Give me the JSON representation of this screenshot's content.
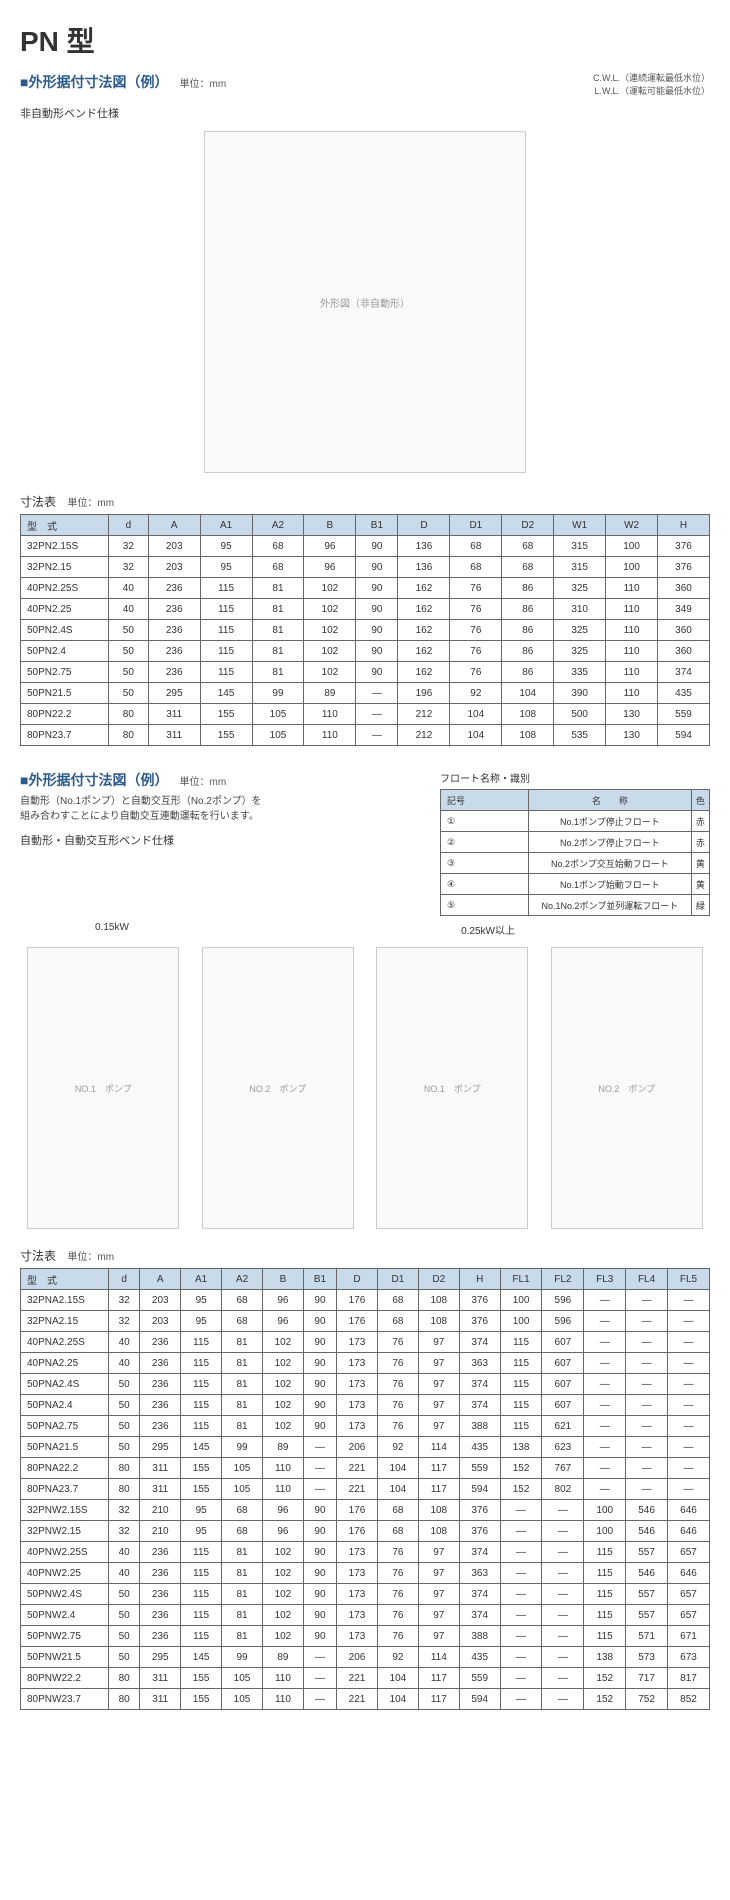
{
  "title": "PN 型",
  "section1": {
    "heading": "■外形据付寸法図（例）",
    "unit": "単位：mm",
    "notes": [
      "C.W.L.（連続運転最低水位）",
      "L.W.L.（運転可能最低水位）"
    ],
    "subtype": "非自動形ベンド仕様",
    "diagram_label": "外形図（非自動形）"
  },
  "table1": {
    "title": "寸法表",
    "unit": "単位：mm",
    "columns": [
      "型　式",
      "d",
      "A",
      "A1",
      "A2",
      "B",
      "B1",
      "D",
      "D1",
      "D2",
      "W1",
      "W2",
      "H"
    ],
    "rows": [
      [
        "32PN2.15S",
        "32",
        "203",
        "95",
        "68",
        "96",
        "90",
        "136",
        "68",
        "68",
        "315",
        "100",
        "376"
      ],
      [
        "32PN2.15",
        "32",
        "203",
        "95",
        "68",
        "96",
        "90",
        "136",
        "68",
        "68",
        "315",
        "100",
        "376"
      ],
      [
        "40PN2.25S",
        "40",
        "236",
        "115",
        "81",
        "102",
        "90",
        "162",
        "76",
        "86",
        "325",
        "110",
        "360"
      ],
      [
        "40PN2.25",
        "40",
        "236",
        "115",
        "81",
        "102",
        "90",
        "162",
        "76",
        "86",
        "310",
        "110",
        "349"
      ],
      [
        "50PN2.4S",
        "50",
        "236",
        "115",
        "81",
        "102",
        "90",
        "162",
        "76",
        "86",
        "325",
        "110",
        "360"
      ],
      [
        "50PN2.4",
        "50",
        "236",
        "115",
        "81",
        "102",
        "90",
        "162",
        "76",
        "86",
        "325",
        "110",
        "360"
      ],
      [
        "50PN2.75",
        "50",
        "236",
        "115",
        "81",
        "102",
        "90",
        "162",
        "76",
        "86",
        "335",
        "110",
        "374"
      ],
      [
        "50PN21.5",
        "50",
        "295",
        "145",
        "99",
        "89",
        "—",
        "196",
        "92",
        "104",
        "390",
        "110",
        "435"
      ],
      [
        "80PN22.2",
        "80",
        "311",
        "155",
        "105",
        "110",
        "—",
        "212",
        "104",
        "108",
        "500",
        "130",
        "559"
      ],
      [
        "80PN23.7",
        "80",
        "311",
        "155",
        "105",
        "110",
        "—",
        "212",
        "104",
        "108",
        "535",
        "130",
        "594"
      ]
    ]
  },
  "section2": {
    "heading": "■外形据付寸法図（例）",
    "unit": "単位：mm",
    "note_lines": [
      "自動形（No.1ポンプ）と自動交互形（No.2ポンプ）を",
      "組み合わすことにより自動交互連動運転を行います。"
    ],
    "subtype": "自動形・自動交互形ベンド仕様",
    "float_title": "フロート名称・識別",
    "float_table": {
      "columns": [
        "記号",
        "名　　称",
        "色"
      ],
      "rows": [
        [
          "①",
          "No.1ポンプ停止フロート",
          "赤"
        ],
        [
          "②",
          "No.2ポンプ停止フロート",
          "赤"
        ],
        [
          "③",
          "No.2ポンプ交互始動フロート",
          "黄"
        ],
        [
          "④",
          "No.1ポンプ始動フロート",
          "黄"
        ],
        [
          "⑤",
          "No.1No.2ポンプ並列運転フロート",
          "緑"
        ]
      ]
    },
    "kw_left": "0.15kW",
    "kw_right": "0.25kW以上",
    "pump_labels": [
      "NO.1　ポンプ",
      "NO.2　ポンプ",
      "NO.1　ポンプ",
      "NO.2　ポンプ"
    ]
  },
  "table2": {
    "title": "寸法表",
    "unit": "単位：mm",
    "columns": [
      "型　式",
      "d",
      "A",
      "A1",
      "A2",
      "B",
      "B1",
      "D",
      "D1",
      "D2",
      "H",
      "FL1",
      "FL2",
      "FL3",
      "FL4",
      "FL5"
    ],
    "rows": [
      [
        "32PNA2.15S",
        "32",
        "203",
        "95",
        "68",
        "96",
        "90",
        "176",
        "68",
        "108",
        "376",
        "100",
        "596",
        "—",
        "—",
        "—"
      ],
      [
        "32PNA2.15",
        "32",
        "203",
        "95",
        "68",
        "96",
        "90",
        "176",
        "68",
        "108",
        "376",
        "100",
        "596",
        "—",
        "—",
        "—"
      ],
      [
        "40PNA2.25S",
        "40",
        "236",
        "115",
        "81",
        "102",
        "90",
        "173",
        "76",
        "97",
        "374",
        "115",
        "607",
        "—",
        "—",
        "—"
      ],
      [
        "40PNA2.25",
        "40",
        "236",
        "115",
        "81",
        "102",
        "90",
        "173",
        "76",
        "97",
        "363",
        "115",
        "607",
        "—",
        "—",
        "—"
      ],
      [
        "50PNA2.4S",
        "50",
        "236",
        "115",
        "81",
        "102",
        "90",
        "173",
        "76",
        "97",
        "374",
        "115",
        "607",
        "—",
        "—",
        "—"
      ],
      [
        "50PNA2.4",
        "50",
        "236",
        "115",
        "81",
        "102",
        "90",
        "173",
        "76",
        "97",
        "374",
        "115",
        "607",
        "—",
        "—",
        "—"
      ],
      [
        "50PNA2.75",
        "50",
        "236",
        "115",
        "81",
        "102",
        "90",
        "173",
        "76",
        "97",
        "388",
        "115",
        "621",
        "—",
        "—",
        "—"
      ],
      [
        "50PNA21.5",
        "50",
        "295",
        "145",
        "99",
        "89",
        "—",
        "206",
        "92",
        "114",
        "435",
        "138",
        "623",
        "—",
        "—",
        "—"
      ],
      [
        "80PNA22.2",
        "80",
        "311",
        "155",
        "105",
        "110",
        "—",
        "221",
        "104",
        "117",
        "559",
        "152",
        "767",
        "—",
        "—",
        "—"
      ],
      [
        "80PNA23.7",
        "80",
        "311",
        "155",
        "105",
        "110",
        "—",
        "221",
        "104",
        "117",
        "594",
        "152",
        "802",
        "—",
        "—",
        "—"
      ],
      [
        "32PNW2.15S",
        "32",
        "210",
        "95",
        "68",
        "96",
        "90",
        "176",
        "68",
        "108",
        "376",
        "—",
        "—",
        "100",
        "546",
        "646"
      ],
      [
        "32PNW2.15",
        "32",
        "210",
        "95",
        "68",
        "96",
        "90",
        "176",
        "68",
        "108",
        "376",
        "—",
        "—",
        "100",
        "546",
        "646"
      ],
      [
        "40PNW2.25S",
        "40",
        "236",
        "115",
        "81",
        "102",
        "90",
        "173",
        "76",
        "97",
        "374",
        "—",
        "—",
        "115",
        "557",
        "657"
      ],
      [
        "40PNW2.25",
        "40",
        "236",
        "115",
        "81",
        "102",
        "90",
        "173",
        "76",
        "97",
        "363",
        "—",
        "—",
        "115",
        "546",
        "646"
      ],
      [
        "50PNW2.4S",
        "50",
        "236",
        "115",
        "81",
        "102",
        "90",
        "173",
        "76",
        "97",
        "374",
        "—",
        "—",
        "115",
        "557",
        "657"
      ],
      [
        "50PNW2.4",
        "50",
        "236",
        "115",
        "81",
        "102",
        "90",
        "173",
        "76",
        "97",
        "374",
        "—",
        "—",
        "115",
        "557",
        "657"
      ],
      [
        "50PNW2.75",
        "50",
        "236",
        "115",
        "81",
        "102",
        "90",
        "173",
        "76",
        "97",
        "388",
        "—",
        "—",
        "115",
        "571",
        "671"
      ],
      [
        "50PNW21.5",
        "50",
        "295",
        "145",
        "99",
        "89",
        "—",
        "206",
        "92",
        "114",
        "435",
        "—",
        "—",
        "138",
        "573",
        "673"
      ],
      [
        "80PNW22.2",
        "80",
        "311",
        "155",
        "105",
        "110",
        "—",
        "221",
        "104",
        "117",
        "559",
        "—",
        "—",
        "152",
        "717",
        "817"
      ],
      [
        "80PNW23.7",
        "80",
        "311",
        "155",
        "105",
        "110",
        "—",
        "221",
        "104",
        "117",
        "594",
        "—",
        "—",
        "152",
        "752",
        "852"
      ]
    ]
  },
  "colors": {
    "header_bg": "#c9daea",
    "border": "#666666",
    "title_blue": "#2e5c8a"
  }
}
